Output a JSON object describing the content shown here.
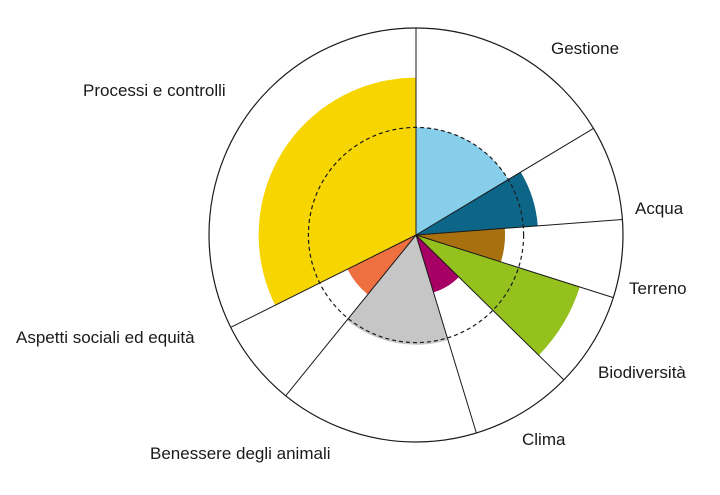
{
  "chart_data": {
    "type": "polar-area",
    "title": "",
    "max_value": 1.0,
    "reference_level": 0.52,
    "categories": [
      {
        "label": "Gestione",
        "share": 0.1639,
        "value": 0.52,
        "color": "#87ceeb"
      },
      {
        "label": "Acqua",
        "share": 0.0742,
        "value": 0.59,
        "color": "#0d6687"
      },
      {
        "label": "Terreno",
        "share": 0.0608,
        "value": 0.43,
        "color": "#a8700f"
      },
      {
        "label": "Biodiversità",
        "share": 0.0745,
        "value": 0.83,
        "color": "#95c11f"
      },
      {
        "label": "Clima",
        "share": 0.0795,
        "value": 0.29,
        "color": "#a60064"
      },
      {
        "label": "Benessere degli animali",
        "share": 0.1555,
        "value": 0.53,
        "color": "#c6c6c6"
      },
      {
        "label": "Aspetti sociali ed equità",
        "share": 0.068,
        "value": 0.37,
        "color": "#ee7040"
      },
      {
        "label": "Processi e controlli",
        "share": 0.3236,
        "value": 0.76,
        "color": "#f7d500"
      }
    ]
  }
}
